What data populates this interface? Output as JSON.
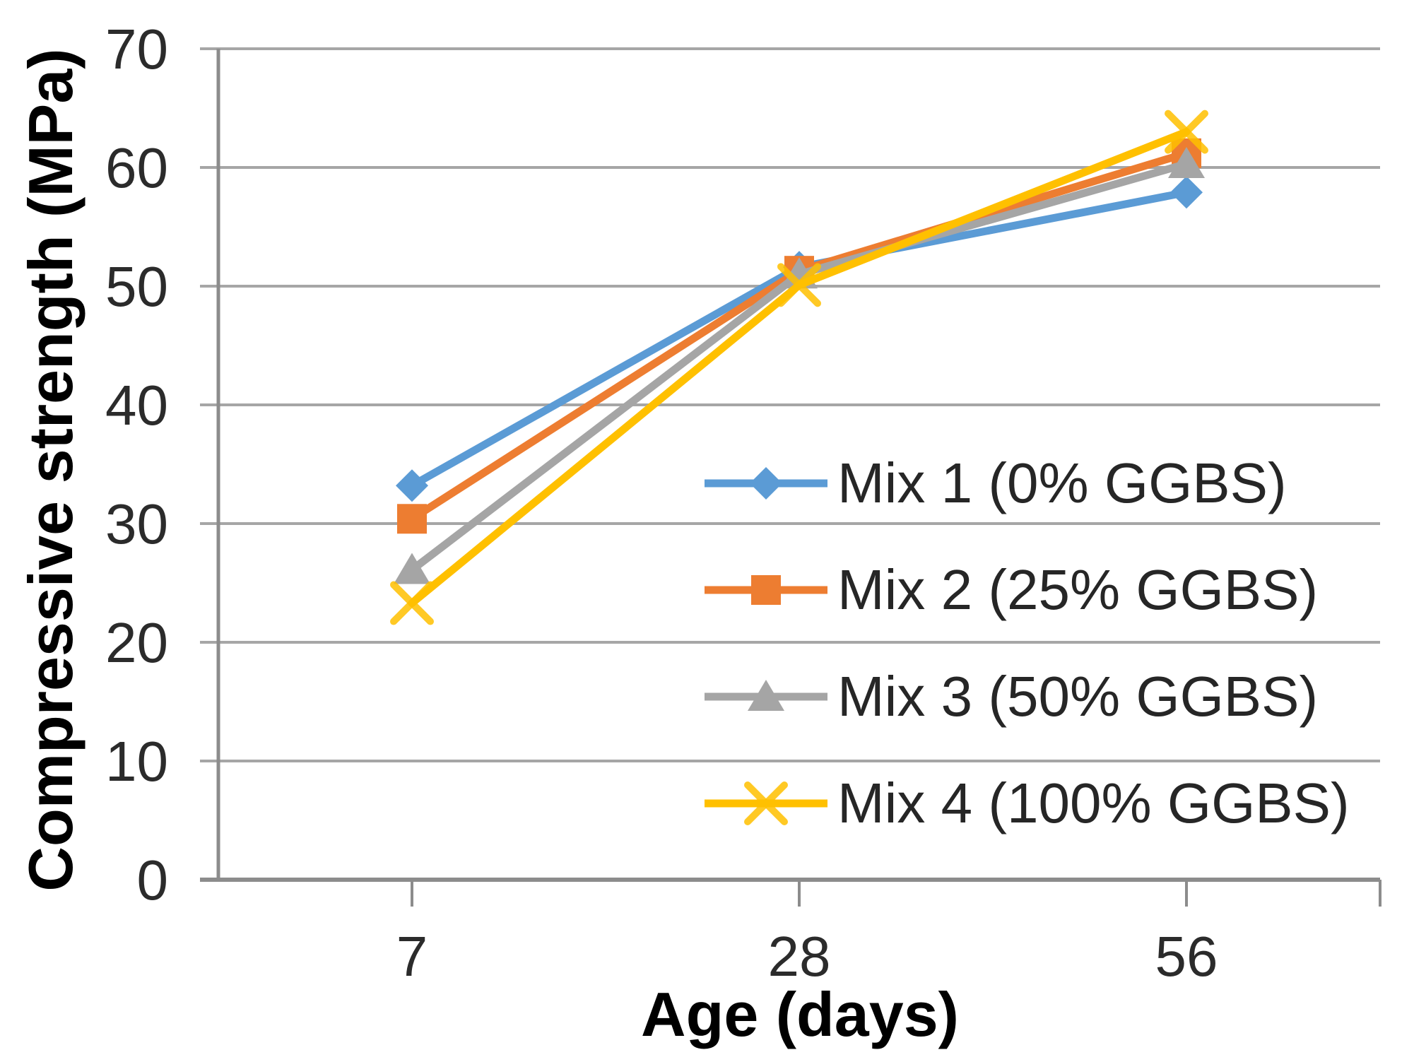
{
  "chart_data": {
    "type": "line",
    "title": "",
    "xlabel": "Age (days)",
    "ylabel": "Compressive strength (MPa)",
    "categories": [
      "7",
      "28",
      "56"
    ],
    "y_ticks": [
      0,
      10,
      20,
      30,
      40,
      50,
      60,
      70
    ],
    "ylim": [
      0,
      70
    ],
    "grid": "horizontal",
    "legend_position": "inside-right",
    "series": [
      {
        "name": "Mix 1 (0% GGBS)",
        "marker": "diamond",
        "color": "#5B9BD5",
        "values": [
          33.2,
          51.6,
          57.9
        ]
      },
      {
        "name": "Mix 2 (25% GGBS)",
        "marker": "square",
        "color": "#ED7D31",
        "values": [
          30.4,
          51.3,
          61.2
        ]
      },
      {
        "name": "Mix 3 (50% GGBS)",
        "marker": "triangle",
        "color": "#A5A5A5",
        "values": [
          26.1,
          51.0,
          60.3
        ]
      },
      {
        "name": "Mix 4 (100% GGBS)",
        "marker": "x",
        "color": "#FFC000",
        "values": [
          23.3,
          50.1,
          63.0
        ]
      }
    ],
    "colors": {
      "gridline": "#A6A6A6",
      "axis_line": "#8C8C8C",
      "tick_text": "#2B2B2B",
      "title_text": "#000000",
      "background": "#FFFFFF"
    }
  }
}
